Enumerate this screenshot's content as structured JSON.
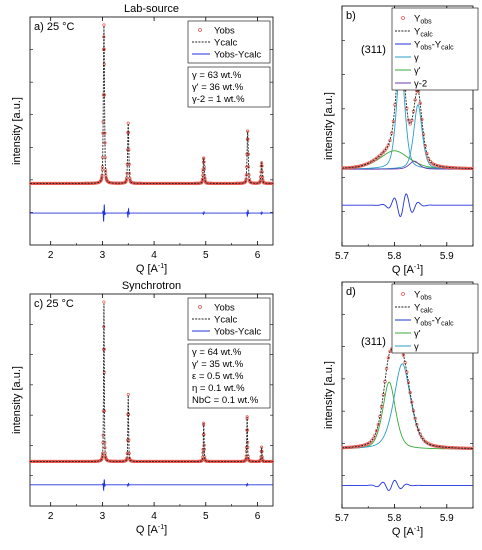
{
  "colors": {
    "obs": "#e8584f",
    "calc": "#222222",
    "diff": "#2233dd",
    "gamma": "#2b9fc7",
    "gamma_prime": "#3aa83a",
    "gamma2": "#6a3bb0"
  },
  "chart_data": [
    {
      "id": "a",
      "type": "line",
      "title": "Lab-source",
      "panel_label": "a)",
      "temperature": "25 °C",
      "xlabel": "Q [A",
      "xlabel_sup": "-1",
      "xlabel_close": "]",
      "ylabel": "intensity [a.u.]",
      "xlim": [
        1.6,
        6.3
      ],
      "xticks": [
        "2",
        "3",
        "4",
        "5",
        "6"
      ],
      "legend": [
        "Yobs",
        "Ycalc",
        "Yobs-Ycalc"
      ],
      "phases": [
        "γ   = 63 wt.%",
        "γ' = 36 wt.%",
        "γ-2 = 1 wt.%"
      ],
      "peaks": [
        {
          "q": 3.03,
          "height": 1.0
        },
        {
          "q": 3.5,
          "height": 0.38
        },
        {
          "q": 4.96,
          "height": 0.16
        },
        {
          "q": 5.81,
          "height": 0.33
        },
        {
          "q": 6.08,
          "height": 0.13
        }
      ],
      "background": 0.0,
      "difference_spikes": [
        {
          "q": 3.03,
          "amp": 0.35
        },
        {
          "q": 3.5,
          "amp": 0.18
        },
        {
          "q": 4.96,
          "amp": 0.05
        },
        {
          "q": 5.81,
          "amp": 0.12
        },
        {
          "q": 6.08,
          "amp": 0.05
        }
      ]
    },
    {
      "id": "b",
      "type": "line",
      "panel_label": "b)",
      "peak_label": "(311)",
      "xlabel": "Q [A",
      "xlabel_sup": "-1",
      "xlabel_close": "]",
      "ylabel": "intensity [a.u.]",
      "xlim": [
        5.7,
        5.95
      ],
      "xticks": [
        "5.7",
        "5.8",
        "5.9"
      ],
      "legend": [
        {
          "main": "Y",
          "sub": "obs"
        },
        {
          "main": "Y",
          "sub": "calc"
        },
        {
          "main": "Y",
          "sub": "obs",
          "mid": "-Y",
          "sub2": "calc"
        },
        {
          "main": "γ"
        },
        {
          "main": "γ'"
        },
        {
          "main": "γ-2"
        }
      ],
      "series": [
        {
          "name": "γ",
          "center": 5.812,
          "height": 0.93,
          "width": 0.0085
        },
        {
          "name": "γ'",
          "center": 5.8,
          "height": 0.16,
          "width": 0.03
        },
        {
          "name": "γ",
          "center": 5.845,
          "height": 0.56,
          "width": 0.0085
        },
        {
          "name": "γ-2",
          "center": 5.838,
          "height": 0.07,
          "width": 0.01
        }
      ]
    },
    {
      "id": "c",
      "type": "line",
      "title": "Synchrotron",
      "panel_label": "c)",
      "temperature": "25 °C",
      "xlabel": "Q [A",
      "xlabel_sup": "-1",
      "xlabel_close": "]",
      "ylabel": "intensity [a.u.]",
      "xlim": [
        1.6,
        6.3
      ],
      "xticks": [
        "2",
        "3",
        "4",
        "5",
        "6"
      ],
      "legend": [
        "Yobs",
        "Ycalc",
        "Yobs-Ycalc"
      ],
      "phases": [
        "γ  = 64 wt.%",
        "γ' = 35 wt.%",
        "ε = 0.5 wt.%",
        "η  = 0.1 wt.%",
        "NbC = 0.1 wt.%"
      ],
      "peaks": [
        {
          "q": 3.03,
          "height": 1.0
        },
        {
          "q": 3.5,
          "height": 0.42
        },
        {
          "q": 4.96,
          "height": 0.24
        },
        {
          "q": 5.8,
          "height": 0.28
        },
        {
          "q": 6.08,
          "height": 0.09
        }
      ],
      "background": 0.0,
      "difference_spikes": [
        {
          "q": 3.03,
          "amp": 0.22
        },
        {
          "q": 3.5,
          "amp": 0.06
        },
        {
          "q": 5.8,
          "amp": 0.05
        }
      ]
    },
    {
      "id": "d",
      "type": "line",
      "panel_label": "d)",
      "peak_label": "(311)",
      "xlabel": "Q [A",
      "xlabel_sup": "-1",
      "xlabel_close": "]",
      "ylabel": "intensity [a.u.]",
      "xlim": [
        5.7,
        5.95
      ],
      "xticks": [
        "5.7",
        "5.8",
        "5.9"
      ],
      "legend": [
        {
          "main": "Y",
          "sub": "obs"
        },
        {
          "main": "Y",
          "sub": "calc"
        },
        {
          "main": "Y",
          "sub": "obs",
          "mid": "-Y",
          "sub2": "calc"
        },
        {
          "main": "γ'"
        },
        {
          "main": "γ"
        }
      ],
      "series": [
        {
          "name": "γ'",
          "center": 5.79,
          "height": 0.55,
          "width": 0.013
        },
        {
          "name": "γ",
          "center": 5.815,
          "height": 0.7,
          "width": 0.017
        }
      ]
    }
  ]
}
